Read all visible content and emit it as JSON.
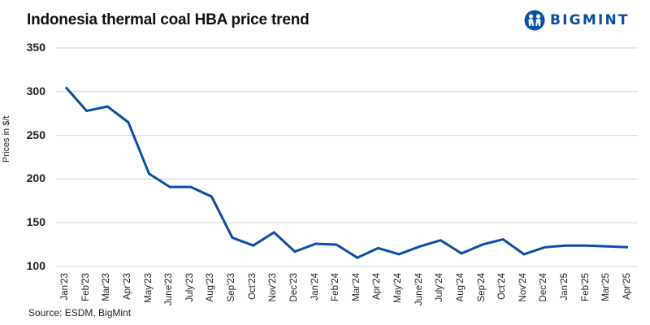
{
  "header": {
    "title": "Indonesia thermal coal HBA price trend",
    "logo_text": "BIGMINT",
    "logo_icon": "bigmint-people-icon",
    "brand_color": "#0A4EA5"
  },
  "footer": {
    "source": "Source: ESDM, BigMint"
  },
  "chart_data": {
    "type": "line",
    "title": "Indonesia thermal coal HBA price trend",
    "xlabel": "",
    "ylabel": "Prices in $/t",
    "ylim": [
      100,
      350
    ],
    "yticks": [
      "350",
      "300",
      "250",
      "200",
      "150",
      "100"
    ],
    "grid": true,
    "legend": "none",
    "line_color": "#0A4EA5",
    "categories": [
      "Jan'23",
      "Feb'23",
      "Mar'23",
      "Apr'23",
      "May'23",
      "June'23",
      "July'23",
      "Aug'23",
      "Sep'23",
      "Oct'23",
      "Nov'23",
      "Dec'23",
      "Jan'24",
      "Feb'24",
      "Mar'24",
      "Apr'24",
      "May'24",
      "June'24",
      "July'24",
      "Aug'24",
      "Sep'24",
      "Oct'24",
      "Nov'24",
      "Dec'24",
      "Jan'25",
      "Feb'25",
      "Mar'25",
      "Apr'25"
    ],
    "series": [
      {
        "name": "HBA price",
        "values": [
          305,
          278,
          283,
          265,
          206,
          191,
          191,
          180,
          133,
          124,
          139,
          117,
          126,
          125,
          110,
          121,
          114,
          123,
          130,
          115,
          125,
          131,
          114,
          122,
          124,
          124,
          123,
          122
        ]
      }
    ],
    "source": "Source: ESDM, BigMint"
  }
}
